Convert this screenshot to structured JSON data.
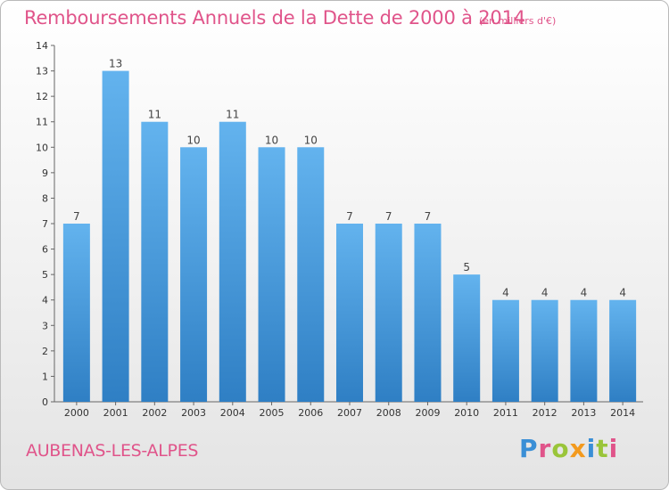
{
  "title": "Remboursements Annuels de la Dette de 2000 à 2014",
  "subtitle": "(en milliers d'€)",
  "commune": "AUBENAS-LES-ALPES",
  "logo": {
    "text": "Proxiti",
    "letters": [
      {
        "ch": "P",
        "color": "#3a8fd6"
      },
      {
        "ch": "r",
        "color": "#e0548a"
      },
      {
        "ch": "o",
        "color": "#9ac53a"
      },
      {
        "ch": "x",
        "color": "#f39a1e"
      },
      {
        "ch": "i",
        "color": "#3a8fd6"
      },
      {
        "ch": "t",
        "color": "#9ac53a"
      },
      {
        "ch": "i",
        "color": "#e0548a"
      }
    ]
  },
  "colors": {
    "accent": "#e0548a",
    "bar_top": "#63b3ee",
    "bar_bottom": "#2f7fc4"
  },
  "chart_data": {
    "type": "bar",
    "categories": [
      "2000",
      "2001",
      "2002",
      "2003",
      "2004",
      "2005",
      "2006",
      "2007",
      "2008",
      "2009",
      "2010",
      "2011",
      "2012",
      "2013",
      "2014"
    ],
    "values": [
      7,
      13,
      11,
      10,
      11,
      10,
      10,
      7,
      7,
      7,
      5,
      4,
      4,
      4,
      4
    ],
    "data_labels": [
      "7",
      "13",
      "11",
      "10",
      "11",
      "10",
      "10",
      "7",
      "7",
      "7",
      "5",
      "4",
      "4",
      "4",
      "4"
    ],
    "ylim": [
      0,
      14
    ],
    "yticks": [
      "0",
      "1",
      "2",
      "3",
      "4",
      "5",
      "6",
      "7",
      "8",
      "9",
      "10",
      "11",
      "12",
      "13",
      "14"
    ],
    "grid": false
  }
}
